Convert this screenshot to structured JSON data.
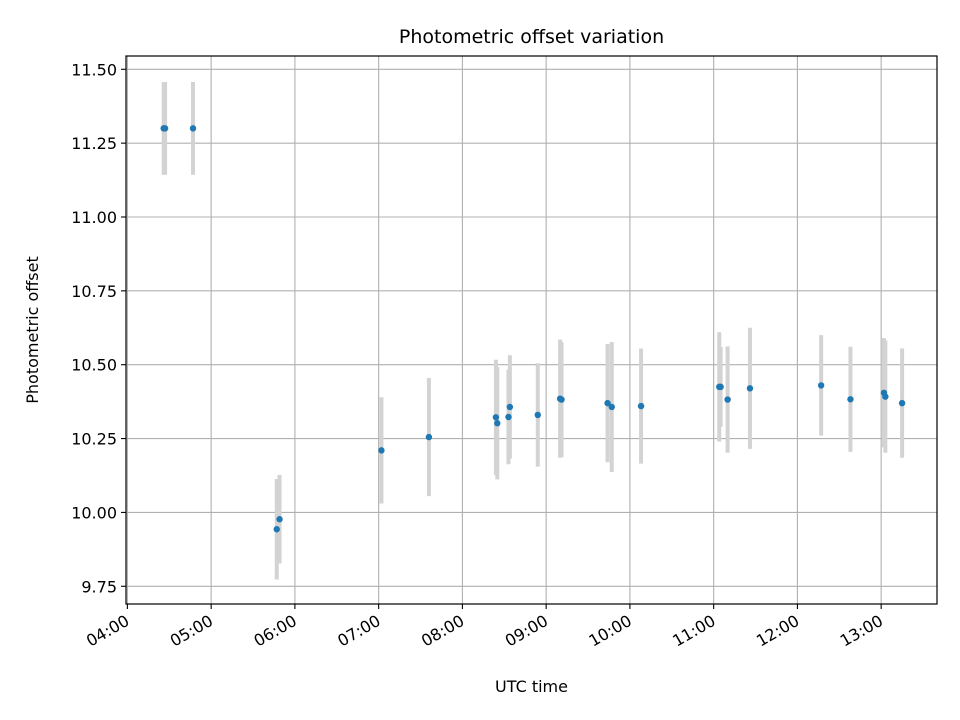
{
  "chart_data": {
    "type": "scatter",
    "title": "Photometric offset variation",
    "xlabel": "UTC time",
    "ylabel": "Photometric offset",
    "xlim": [
      "03:59",
      "13:40"
    ],
    "ylim": [
      9.69,
      11.545
    ],
    "x_ticks": [
      "04:00",
      "05:00",
      "06:00",
      "07:00",
      "08:00",
      "09:00",
      "10:00",
      "11:00",
      "12:00",
      "13:00"
    ],
    "y_ticks": [
      "9.75",
      "10.00",
      "10.25",
      "10.50",
      "10.75",
      "11.00",
      "11.25",
      "11.50"
    ],
    "grid": true,
    "colors": {
      "points": "#1f77b4",
      "errorbars": "#d3d3d3",
      "grid": "#b0b0b0"
    },
    "points": [
      {
        "x": "04:26",
        "y": 11.3,
        "err": 0.157
      },
      {
        "x": "04:27",
        "y": 11.3,
        "err": 0.157
      },
      {
        "x": "04:47",
        "y": 11.3,
        "err": 0.157
      },
      {
        "x": "05:47",
        "y": 9.943,
        "err": 0.17
      },
      {
        "x": "05:49",
        "y": 9.977,
        "err": 0.15
      },
      {
        "x": "07:02",
        "y": 10.21,
        "err": 0.18
      },
      {
        "x": "07:36",
        "y": 10.255,
        "err": 0.2
      },
      {
        "x": "08:24",
        "y": 10.322,
        "err": 0.195
      },
      {
        "x": "08:25",
        "y": 10.302,
        "err": 0.19
      },
      {
        "x": "08:33",
        "y": 10.323,
        "err": 0.16
      },
      {
        "x": "08:34",
        "y": 10.357,
        "err": 0.175
      },
      {
        "x": "08:54",
        "y": 10.33,
        "err": 0.175
      },
      {
        "x": "09:10",
        "y": 10.385,
        "err": 0.2
      },
      {
        "x": "09:11",
        "y": 10.382,
        "err": 0.195
      },
      {
        "x": "09:44",
        "y": 10.37,
        "err": 0.2
      },
      {
        "x": "09:47",
        "y": 10.357,
        "err": 0.22
      },
      {
        "x": "10:08",
        "y": 10.36,
        "err": 0.195
      },
      {
        "x": "11:04",
        "y": 10.425,
        "err": 0.185
      },
      {
        "x": "11:05",
        "y": 10.425,
        "err": 0.135
      },
      {
        "x": "11:10",
        "y": 10.382,
        "err": 0.18
      },
      {
        "x": "11:26",
        "y": 10.42,
        "err": 0.205
      },
      {
        "x": "12:17",
        "y": 10.43,
        "err": 0.17
      },
      {
        "x": "12:38",
        "y": 10.383,
        "err": 0.178
      },
      {
        "x": "13:02",
        "y": 10.405,
        "err": 0.185
      },
      {
        "x": "13:03",
        "y": 10.392,
        "err": 0.19
      },
      {
        "x": "13:15",
        "y": 10.37,
        "err": 0.185
      }
    ]
  }
}
